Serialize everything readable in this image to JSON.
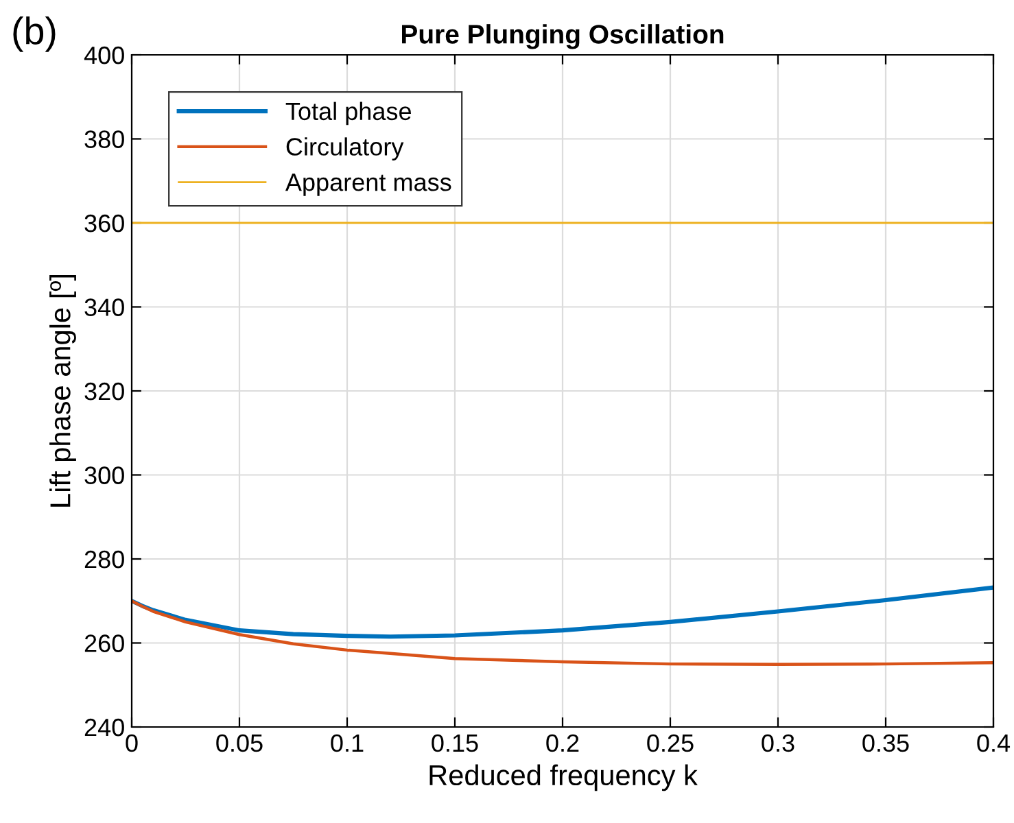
{
  "chart_data": {
    "type": "line",
    "title": "Pure Plunging Oscillation",
    "xlabel": "Reduced frequency k",
    "ylabel": "Lift phase angle [º]",
    "annotations": [
      "(b)"
    ],
    "x": [
      0,
      0.005,
      0.01,
      0.025,
      0.05,
      0.075,
      0.1,
      0.12,
      0.15,
      0.2,
      0.25,
      0.3,
      0.35,
      0.4
    ],
    "series": [
      {
        "name": "Total phase",
        "color": "#0072bd",
        "values": [
          270,
          268.8,
          267.8,
          265.5,
          263,
          262.1,
          261.7,
          261.5,
          261.8,
          263,
          265,
          267.5,
          270.2,
          273.2
        ]
      },
      {
        "name": "Circulatory",
        "color": "#d95319",
        "values": [
          270,
          268.7,
          267.5,
          265,
          262,
          259.8,
          258.3,
          257.5,
          256.3,
          255.5,
          255,
          254.9,
          255,
          255.3
        ]
      },
      {
        "name": "Apparent mass",
        "color": "#edb120",
        "values": [
          360,
          360,
          360,
          360,
          360,
          360,
          360,
          360,
          360,
          360,
          360,
          360,
          360,
          360
        ]
      }
    ],
    "xlim": [
      0,
      0.4
    ],
    "xticks": [
      0,
      0.05,
      0.1,
      0.15,
      0.2,
      0.25,
      0.3,
      0.35,
      0.4
    ],
    "ylim": [
      240,
      400
    ],
    "yticks": [
      240,
      260,
      280,
      300,
      320,
      340,
      360,
      380,
      400
    ],
    "grid": true,
    "legend": "top left",
    "marker": "none",
    "line_style": "solid"
  }
}
